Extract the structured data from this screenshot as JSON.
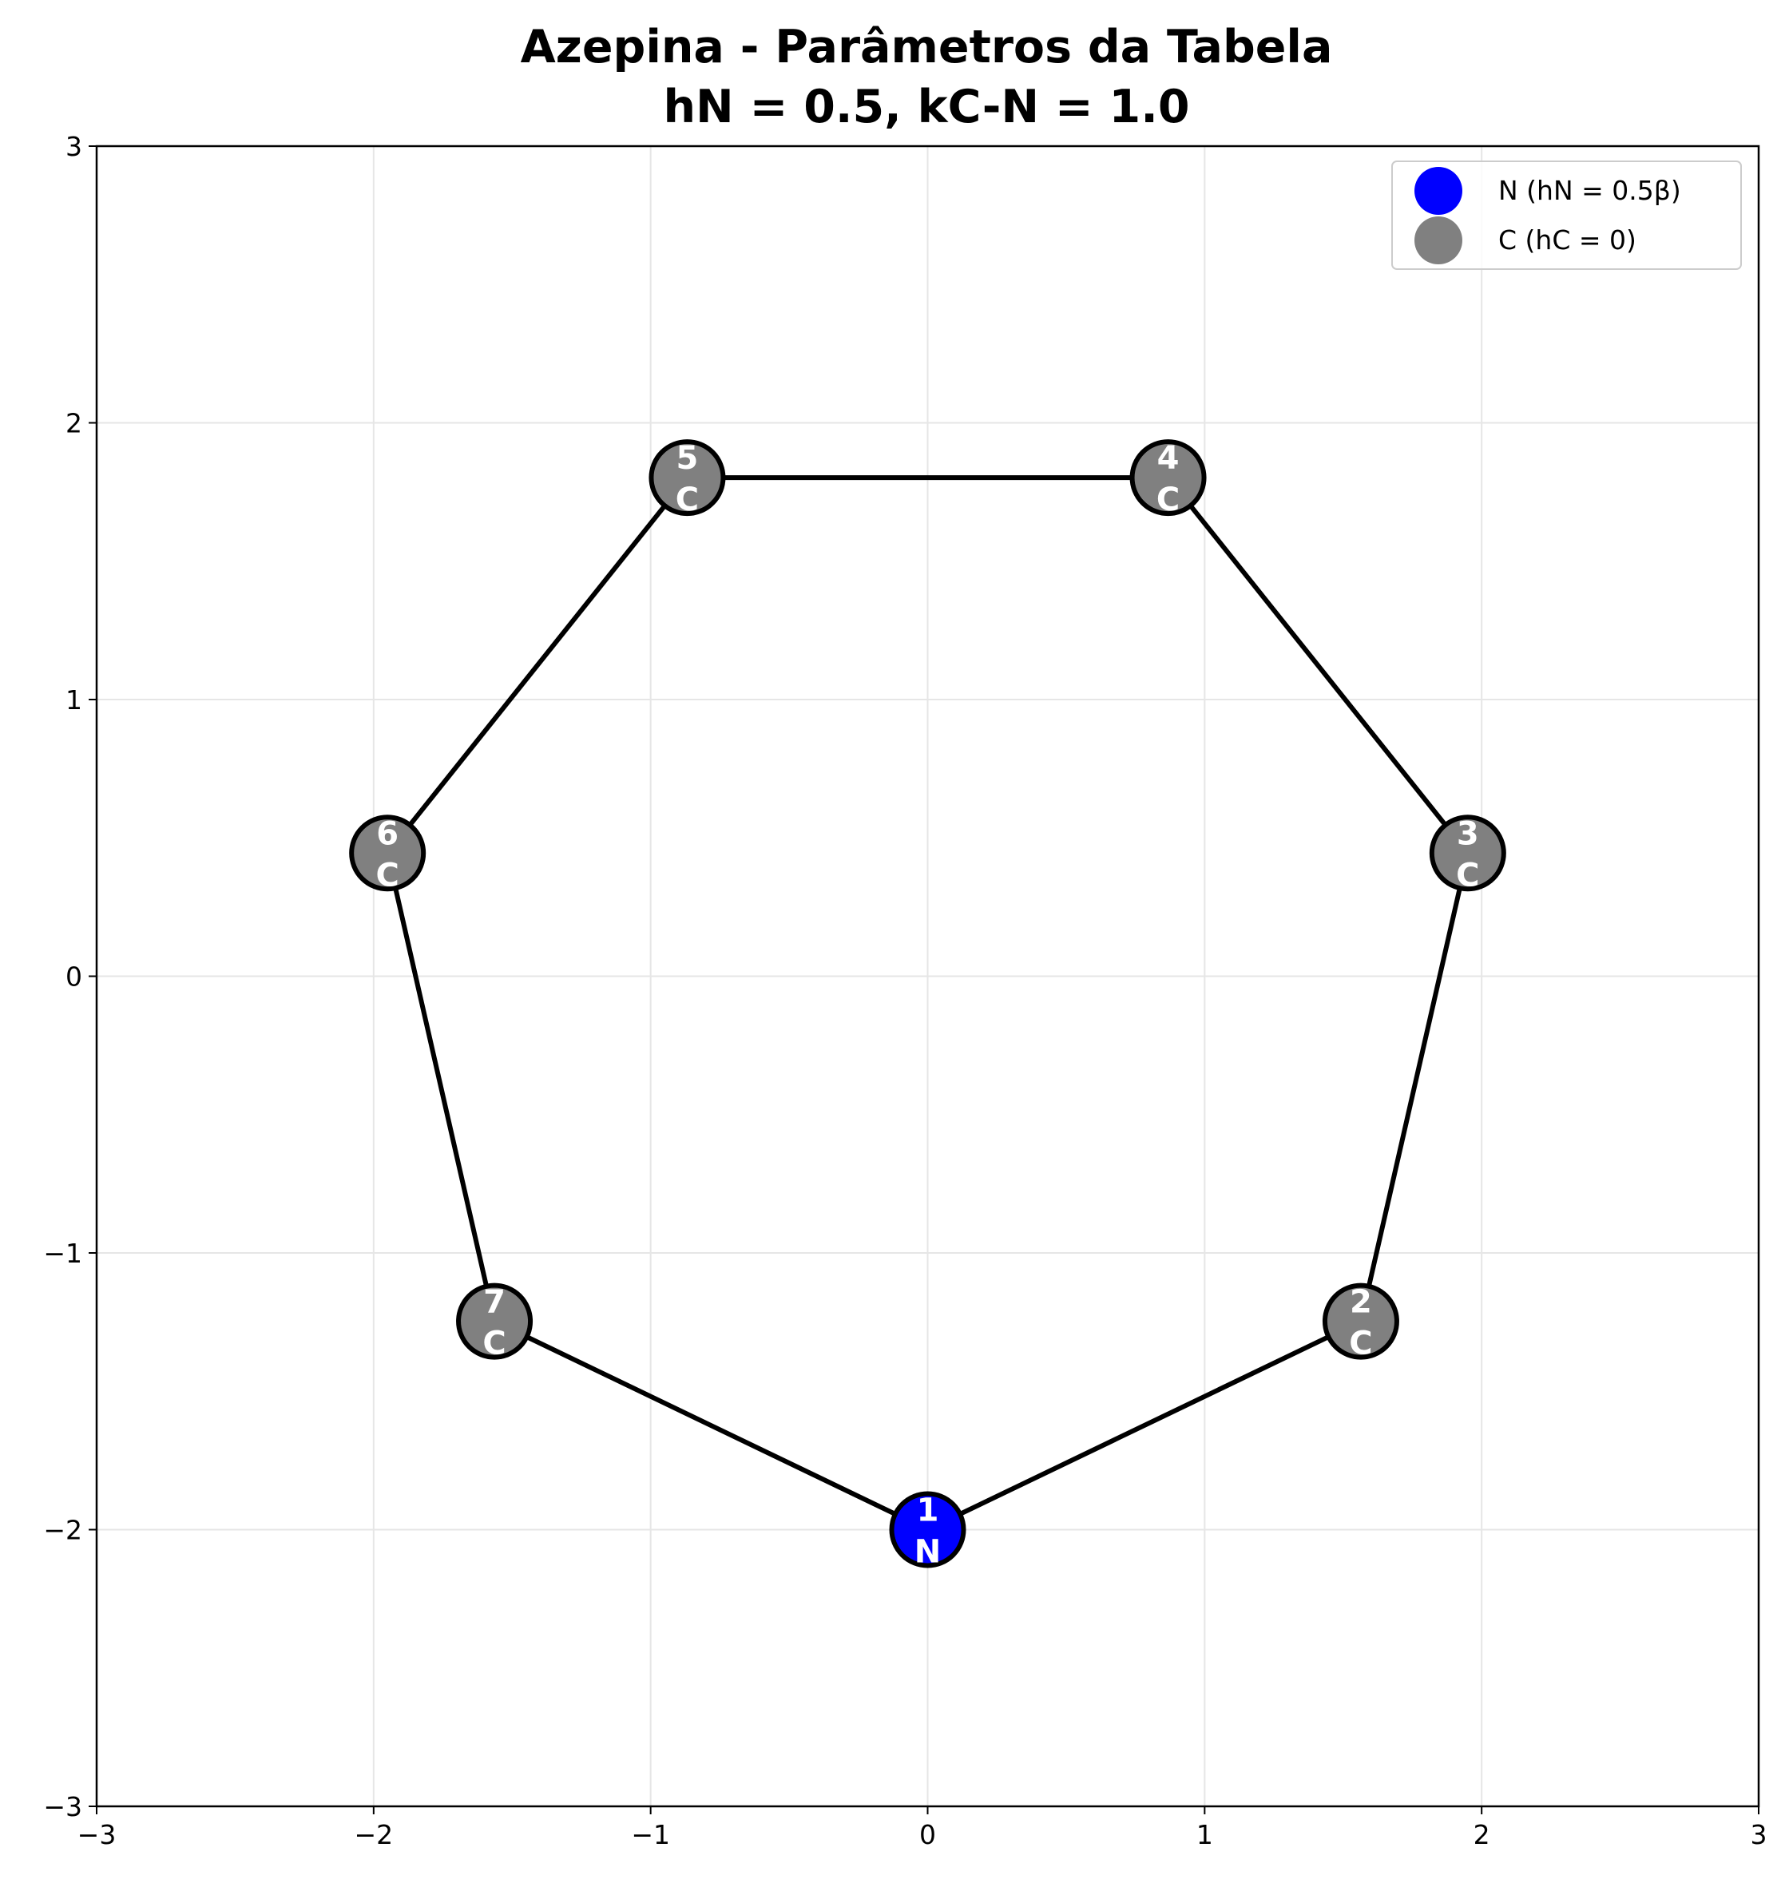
{
  "chart_data": {
    "type": "scatter",
    "title_line1": "Azepina - Parâmetros da Tabela",
    "title_line2": "hN = 0.5, kC-N = 1.0",
    "xlabel": "",
    "ylabel": "",
    "xlim": [
      -3,
      3
    ],
    "ylim": [
      -3,
      3
    ],
    "xticks": [
      -3,
      -2,
      -1,
      0,
      1,
      2,
      3
    ],
    "yticks": [
      -3,
      -2,
      -1,
      0,
      1,
      2,
      3
    ],
    "xtick_labels": [
      "−3",
      "−2",
      "−1",
      "0",
      "1",
      "2",
      "3"
    ],
    "ytick_labels": [
      "−3",
      "−2",
      "−1",
      "0",
      "1",
      "2",
      "3"
    ],
    "grid": true,
    "legend_position": "top-right",
    "colors": {
      "N": "#0000ff",
      "C": "#808080",
      "bond": "#000000",
      "grid": "#e6e6e6"
    },
    "legend": [
      {
        "key": "N",
        "label": "N (hN = 0.5β)"
      },
      {
        "key": "C",
        "label": "C (hC = 0)"
      }
    ],
    "atoms": [
      {
        "index": "1",
        "element": "N",
        "x": 0.0,
        "y": -2.0
      },
      {
        "index": "2",
        "element": "C",
        "x": 1.564,
        "y": -1.247
      },
      {
        "index": "3",
        "element": "C",
        "x": 1.95,
        "y": 0.445
      },
      {
        "index": "4",
        "element": "C",
        "x": 0.868,
        "y": 1.802
      },
      {
        "index": "5",
        "element": "C",
        "x": -0.868,
        "y": 1.802
      },
      {
        "index": "6",
        "element": "C",
        "x": -1.95,
        "y": 0.445
      },
      {
        "index": "7",
        "element": "C",
        "x": -1.564,
        "y": -1.247
      }
    ],
    "bonds": [
      [
        1,
        2
      ],
      [
        2,
        3
      ],
      [
        3,
        4
      ],
      [
        4,
        5
      ],
      [
        5,
        6
      ],
      [
        6,
        7
      ],
      [
        7,
        1
      ]
    ]
  }
}
